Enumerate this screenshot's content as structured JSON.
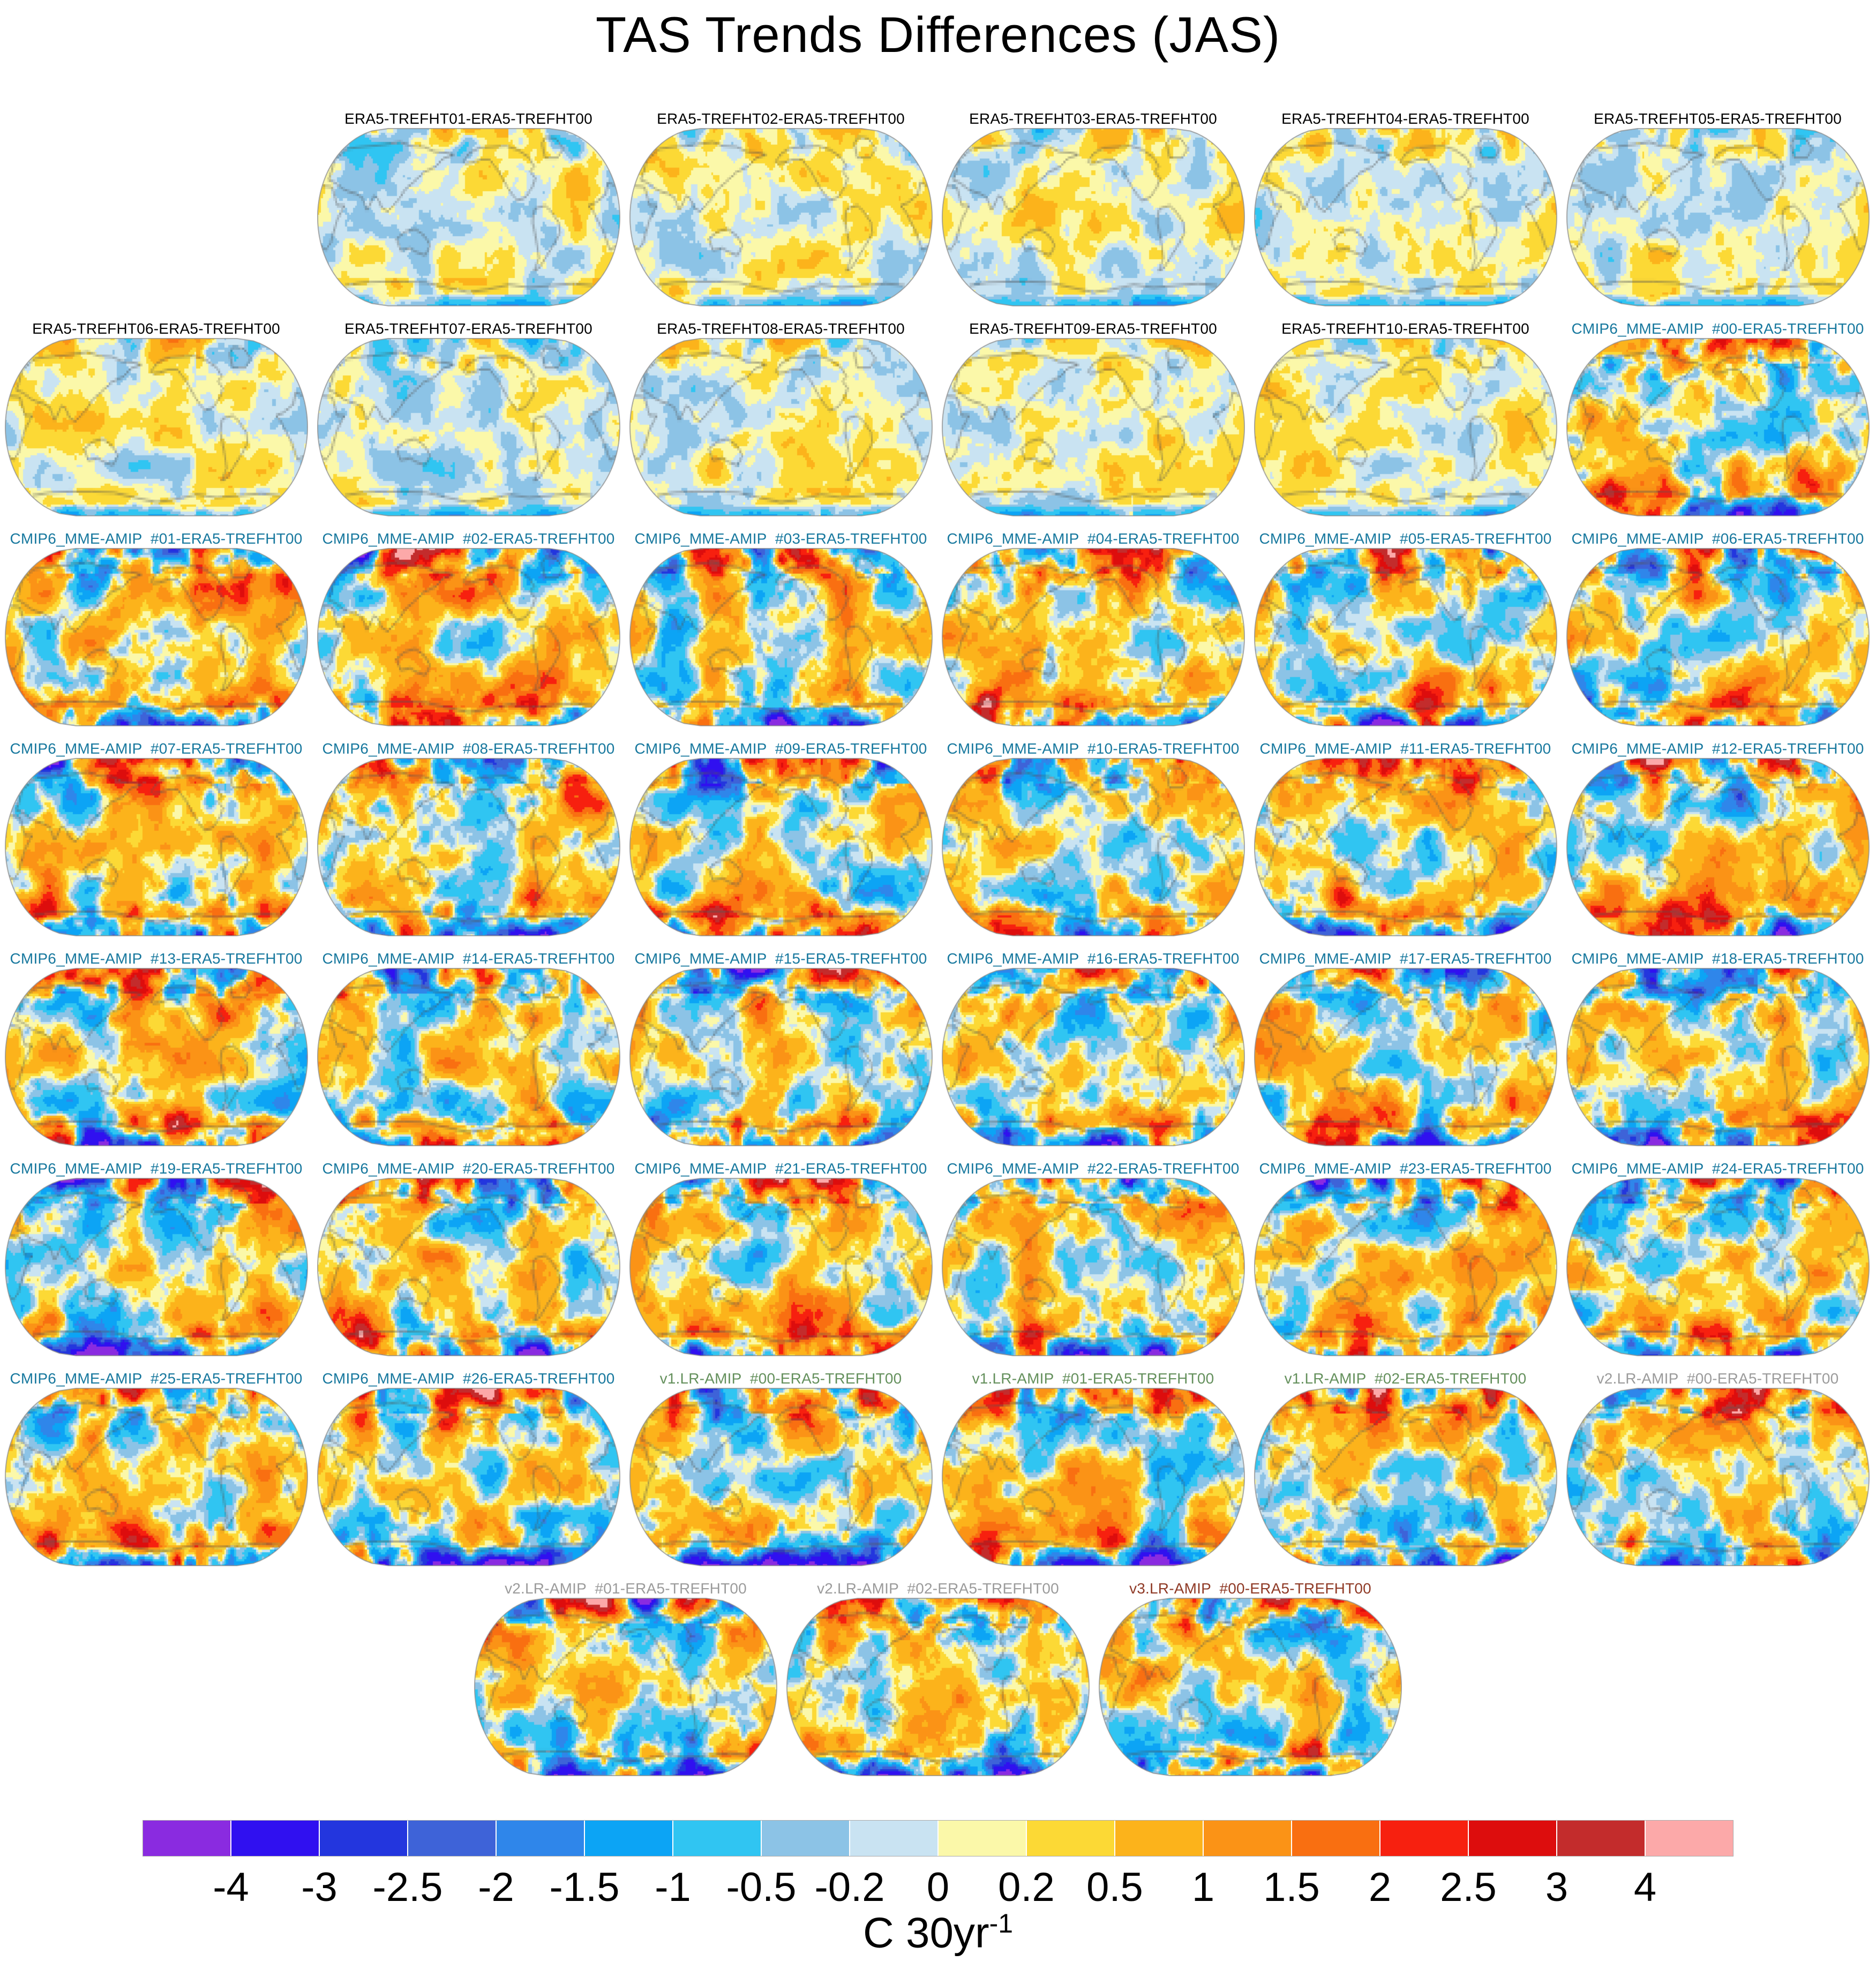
{
  "figure": {
    "title": "TAS Trends Differences (JAS)"
  },
  "title_colors": {
    "era5": "#000000",
    "cmip6": "#17789E",
    "v1lr": "#64905C",
    "v2lr": "#9B9B9B",
    "v3lr": "#8F3A26"
  },
  "rows": [
    {
      "align": "right",
      "items": [
        {
          "title": "ERA5-TREFHT01-ERA5-TREFHT00",
          "group": "era5"
        },
        {
          "title": "ERA5-TREFHT02-ERA5-TREFHT00",
          "group": "era5"
        },
        {
          "title": "ERA5-TREFHT03-ERA5-TREFHT00",
          "group": "era5"
        },
        {
          "title": "ERA5-TREFHT04-ERA5-TREFHT00",
          "group": "era5"
        },
        {
          "title": "ERA5-TREFHT05-ERA5-TREFHT00",
          "group": "era5"
        }
      ]
    },
    {
      "align": "left",
      "items": [
        {
          "title": "ERA5-TREFHT06-ERA5-TREFHT00",
          "group": "era5"
        },
        {
          "title": "ERA5-TREFHT07-ERA5-TREFHT00",
          "group": "era5"
        },
        {
          "title": "ERA5-TREFHT08-ERA5-TREFHT00",
          "group": "era5"
        },
        {
          "title": "ERA5-TREFHT09-ERA5-TREFHT00",
          "group": "era5"
        },
        {
          "title": "ERA5-TREFHT10-ERA5-TREFHT00",
          "group": "era5"
        },
        {
          "title": "CMIP6_MME-AMIP  #00-ERA5-TREFHT00",
          "group": "cmip6"
        }
      ]
    },
    {
      "align": "left",
      "items": [
        {
          "title": "CMIP6_MME-AMIP  #01-ERA5-TREFHT00",
          "group": "cmip6"
        },
        {
          "title": "CMIP6_MME-AMIP  #02-ERA5-TREFHT00",
          "group": "cmip6"
        },
        {
          "title": "CMIP6_MME-AMIP  #03-ERA5-TREFHT00",
          "group": "cmip6"
        },
        {
          "title": "CMIP6_MME-AMIP  #04-ERA5-TREFHT00",
          "group": "cmip6"
        },
        {
          "title": "CMIP6_MME-AMIP  #05-ERA5-TREFHT00",
          "group": "cmip6"
        },
        {
          "title": "CMIP6_MME-AMIP  #06-ERA5-TREFHT00",
          "group": "cmip6"
        }
      ]
    },
    {
      "align": "left",
      "items": [
        {
          "title": "CMIP6_MME-AMIP  #07-ERA5-TREFHT00",
          "group": "cmip6"
        },
        {
          "title": "CMIP6_MME-AMIP  #08-ERA5-TREFHT00",
          "group": "cmip6"
        },
        {
          "title": "CMIP6_MME-AMIP  #09-ERA5-TREFHT00",
          "group": "cmip6"
        },
        {
          "title": "CMIP6_MME-AMIP  #10-ERA5-TREFHT00",
          "group": "cmip6"
        },
        {
          "title": "CMIP6_MME-AMIP  #11-ERA5-TREFHT00",
          "group": "cmip6"
        },
        {
          "title": "CMIP6_MME-AMIP  #12-ERA5-TREFHT00",
          "group": "cmip6"
        }
      ]
    },
    {
      "align": "left",
      "items": [
        {
          "title": "CMIP6_MME-AMIP  #13-ERA5-TREFHT00",
          "group": "cmip6"
        },
        {
          "title": "CMIP6_MME-AMIP  #14-ERA5-TREFHT00",
          "group": "cmip6"
        },
        {
          "title": "CMIP6_MME-AMIP  #15-ERA5-TREFHT00",
          "group": "cmip6"
        },
        {
          "title": "CMIP6_MME-AMIP  #16-ERA5-TREFHT00",
          "group": "cmip6"
        },
        {
          "title": "CMIP6_MME-AMIP  #17-ERA5-TREFHT00",
          "group": "cmip6"
        },
        {
          "title": "CMIP6_MME-AMIP  #18-ERA5-TREFHT00",
          "group": "cmip6"
        }
      ]
    },
    {
      "align": "left",
      "items": [
        {
          "title": "CMIP6_MME-AMIP  #19-ERA5-TREFHT00",
          "group": "cmip6"
        },
        {
          "title": "CMIP6_MME-AMIP  #20-ERA5-TREFHT00",
          "group": "cmip6"
        },
        {
          "title": "CMIP6_MME-AMIP  #21-ERA5-TREFHT00",
          "group": "cmip6"
        },
        {
          "title": "CMIP6_MME-AMIP  #22-ERA5-TREFHT00",
          "group": "cmip6"
        },
        {
          "title": "CMIP6_MME-AMIP  #23-ERA5-TREFHT00",
          "group": "cmip6"
        },
        {
          "title": "CMIP6_MME-AMIP  #24-ERA5-TREFHT00",
          "group": "cmip6"
        }
      ]
    },
    {
      "align": "left",
      "items": [
        {
          "title": "CMIP6_MME-AMIP  #25-ERA5-TREFHT00",
          "group": "cmip6"
        },
        {
          "title": "CMIP6_MME-AMIP  #26-ERA5-TREFHT00",
          "group": "cmip6"
        },
        {
          "title": "v1.LR-AMIP  #00-ERA5-TREFHT00",
          "group": "v1lr"
        },
        {
          "title": "v1.LR-AMIP  #01-ERA5-TREFHT00",
          "group": "v1lr"
        },
        {
          "title": "v1.LR-AMIP  #02-ERA5-TREFHT00",
          "group": "v1lr"
        },
        {
          "title": "v2.LR-AMIP  #00-ERA5-TREFHT00",
          "group": "v2lr"
        }
      ]
    },
    {
      "align": "center",
      "items": [
        {
          "title": "v2.LR-AMIP  #01-ERA5-TREFHT00",
          "group": "v2lr"
        },
        {
          "title": "v2.LR-AMIP  #02-ERA5-TREFHT00",
          "group": "v2lr"
        },
        {
          "title": "v3.LR-AMIP  #00-ERA5-TREFHT00",
          "group": "v3lr"
        }
      ]
    }
  ],
  "colorbar": {
    "tick_labels": [
      "-4",
      "-3",
      "-2.5",
      "-2",
      "-1.5",
      "-1",
      "-0.5",
      "-0.2",
      "0",
      "0.2",
      "0.5",
      "1",
      "1.5",
      "2",
      "2.5",
      "3",
      "4"
    ],
    "segment_colors": [
      "#8A2BE0",
      "#3010F0",
      "#2336DE",
      "#3E63D8",
      "#2F86EA",
      "#0CA4F5",
      "#30C5F2",
      "#8CC3E6",
      "#C9E3F2",
      "#FBF8A9",
      "#FCD935",
      "#FCB31B",
      "#FB9316",
      "#F96F11",
      "#F7200F",
      "#DD0D0D",
      "#C32C2C",
      "#FCA9A9"
    ],
    "units_main": "C 30yr",
    "units_exp": "-1"
  },
  "chart_data": {
    "type": "heatmap",
    "subtype": "global-map-panel-grid",
    "title": "TAS Trends Differences (JAS)",
    "units": "C 30yr-1",
    "projection": "robinson-like ellipse, pacific-centered",
    "grid": {
      "columns": 6,
      "rows": 8,
      "total_panels": 44
    },
    "colorbar_levels": [
      -4,
      -3,
      -2.5,
      -2,
      -1.5,
      -1,
      -0.5,
      -0.2,
      0,
      0.2,
      0.5,
      1,
      1.5,
      2,
      2.5,
      3,
      4
    ],
    "colorbar_colors": [
      "#8A2BE0",
      "#3010F0",
      "#2336DE",
      "#3E63D8",
      "#2F86EA",
      "#0CA4F5",
      "#30C5F2",
      "#8CC3E6",
      "#C9E3F2",
      "#FBF8A9",
      "#FCD935",
      "#FCB31B",
      "#FB9316",
      "#F96F11",
      "#F7200F",
      "#DD0D0D",
      "#C32C2C",
      "#FCA9A9"
    ],
    "panel_titles": [
      "ERA5-TREFHT01-ERA5-TREFHT00",
      "ERA5-TREFHT02-ERA5-TREFHT00",
      "ERA5-TREFHT03-ERA5-TREFHT00",
      "ERA5-TREFHT04-ERA5-TREFHT00",
      "ERA5-TREFHT05-ERA5-TREFHT00",
      "ERA5-TREFHT06-ERA5-TREFHT00",
      "ERA5-TREFHT07-ERA5-TREFHT00",
      "ERA5-TREFHT08-ERA5-TREFHT00",
      "ERA5-TREFHT09-ERA5-TREFHT00",
      "ERA5-TREFHT10-ERA5-TREFHT00",
      "CMIP6_MME-AMIP #00-ERA5-TREFHT00",
      "CMIP6_MME-AMIP #01-ERA5-TREFHT00",
      "CMIP6_MME-AMIP #02-ERA5-TREFHT00",
      "CMIP6_MME-AMIP #03-ERA5-TREFHT00",
      "CMIP6_MME-AMIP #04-ERA5-TREFHT00",
      "CMIP6_MME-AMIP #05-ERA5-TREFHT00",
      "CMIP6_MME-AMIP #06-ERA5-TREFHT00",
      "CMIP6_MME-AMIP #07-ERA5-TREFHT00",
      "CMIP6_MME-AMIP #08-ERA5-TREFHT00",
      "CMIP6_MME-AMIP #09-ERA5-TREFHT00",
      "CMIP6_MME-AMIP #10-ERA5-TREFHT00",
      "CMIP6_MME-AMIP #11-ERA5-TREFHT00",
      "CMIP6_MME-AMIP #12-ERA5-TREFHT00",
      "CMIP6_MME-AMIP #13-ERA5-TREFHT00",
      "CMIP6_MME-AMIP #14-ERA5-TREFHT00",
      "CMIP6_MME-AMIP #15-ERA5-TREFHT00",
      "CMIP6_MME-AMIP #16-ERA5-TREFHT00",
      "CMIP6_MME-AMIP #17-ERA5-TREFHT00",
      "CMIP6_MME-AMIP #18-ERA5-TREFHT00",
      "CMIP6_MME-AMIP #19-ERA5-TREFHT00",
      "CMIP6_MME-AMIP #20-ERA5-TREFHT00",
      "CMIP6_MME-AMIP #21-ERA5-TREFHT00",
      "CMIP6_MME-AMIP #22-ERA5-TREFHT00",
      "CMIP6_MME-AMIP #23-ERA5-TREFHT00",
      "CMIP6_MME-AMIP #24-ERA5-TREFHT00",
      "CMIP6_MME-AMIP #25-ERA5-TREFHT00",
      "CMIP6_MME-AMIP #26-ERA5-TREFHT00",
      "v1.LR-AMIP #00-ERA5-TREFHT00",
      "v1.LR-AMIP #01-ERA5-TREFHT00",
      "v1.LR-AMIP #02-ERA5-TREFHT00",
      "v2.LR-AMIP #00-ERA5-TREFHT00",
      "v2.LR-AMIP #01-ERA5-TREFHT00",
      "v2.LR-AMIP #02-ERA5-TREFHT00",
      "v3.LR-AMIP #00-ERA5-TREFHT00"
    ]
  }
}
